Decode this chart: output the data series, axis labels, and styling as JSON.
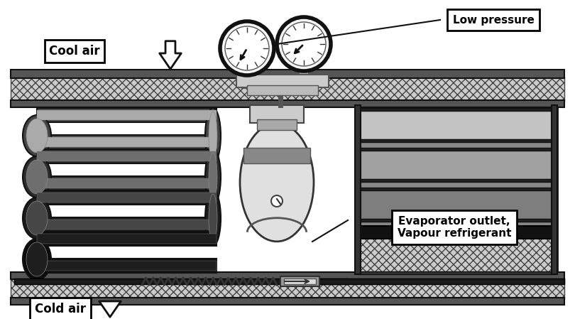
{
  "bg_color": "#ffffff",
  "labels": {
    "cool_air": "Cool air",
    "cold_air": "Cold air",
    "low_pressure": "Low pressure",
    "evap_outlet": "Evaporator outlet,\nVapour refrigerant"
  },
  "colors": {
    "black": "#000000",
    "dark": "#1a1a1a",
    "dark2": "#333333",
    "mid": "#666666",
    "light": "#aaaaaa",
    "lighter": "#cccccc",
    "white": "#ffffff"
  },
  "figsize": [
    8.1,
    4.49
  ],
  "dpi": 100
}
